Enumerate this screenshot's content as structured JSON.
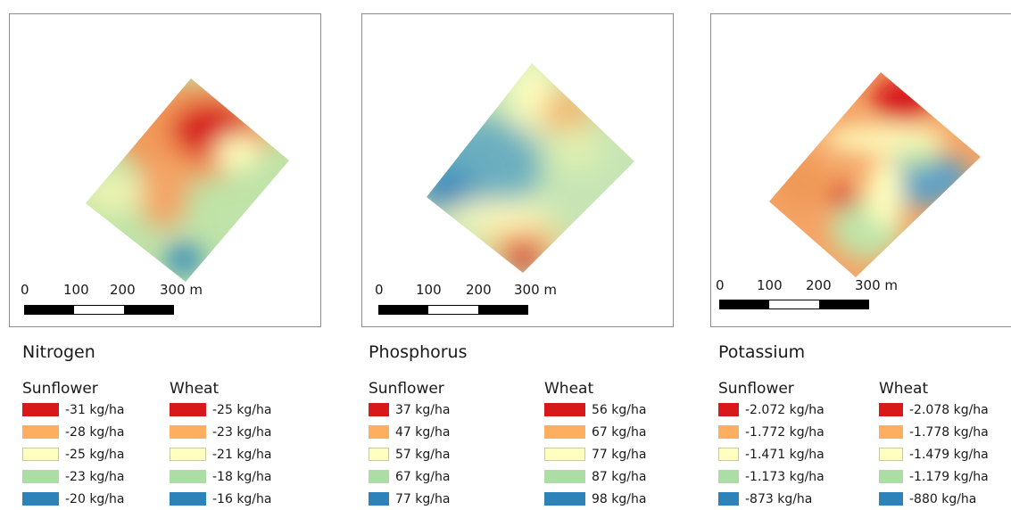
{
  "colors": {
    "class1": "#d7191c",
    "class2": "#fdae61",
    "class3": "#ffffbf",
    "class4": "#abdda4",
    "class5": "#2b83ba"
  },
  "panels": [
    {
      "title": "Nitrogen",
      "scale": {
        "ticks": [
          "0",
          "100",
          "200",
          "300 m"
        ]
      },
      "legend": {
        "sunflower": {
          "header": "Sunflower",
          "items": [
            "-31 kg/ha",
            "-28 kg/ha",
            "-25 kg/ha",
            "-23 kg/ha",
            "-20 kg/ha"
          ]
        },
        "wheat": {
          "header": "Wheat",
          "items": [
            "-25 kg/ha",
            "-23 kg/ha",
            "-21 kg/ha",
            "-18 kg/ha",
            "-16 kg/ha"
          ]
        }
      }
    },
    {
      "title": "Phosphorus",
      "scale": {
        "ticks": [
          "0",
          "100",
          "200",
          "300 m"
        ]
      },
      "legend": {
        "sunflower": {
          "header": "Sunflower",
          "items": [
            "37 kg/ha",
            "47 kg/ha",
            "57 kg/ha",
            "67 kg/ha",
            "77 kg/ha"
          ]
        },
        "wheat": {
          "header": "Wheat",
          "items": [
            "56 kg/ha",
            "67 kg/ha",
            "77 kg/ha",
            "87 kg/ha",
            "98 kg/ha"
          ]
        }
      }
    },
    {
      "title": "Potassium",
      "scale": {
        "ticks": [
          "0",
          "100",
          "200",
          "300 m"
        ]
      },
      "legend": {
        "sunflower": {
          "header": "Sunflower",
          "items": [
            "-2.072 kg/ha",
            "-1.772 kg/ha",
            "-1.471 kg/ha",
            "-1.173 kg/ha",
            "-873 kg/ha"
          ]
        },
        "wheat": {
          "header": "Wheat",
          "items": [
            "-2.078 kg/ha",
            "-1.778 kg/ha",
            "-1.479 kg/ha",
            "-1.179 kg/ha",
            "-880 kg/ha"
          ]
        }
      }
    }
  ]
}
